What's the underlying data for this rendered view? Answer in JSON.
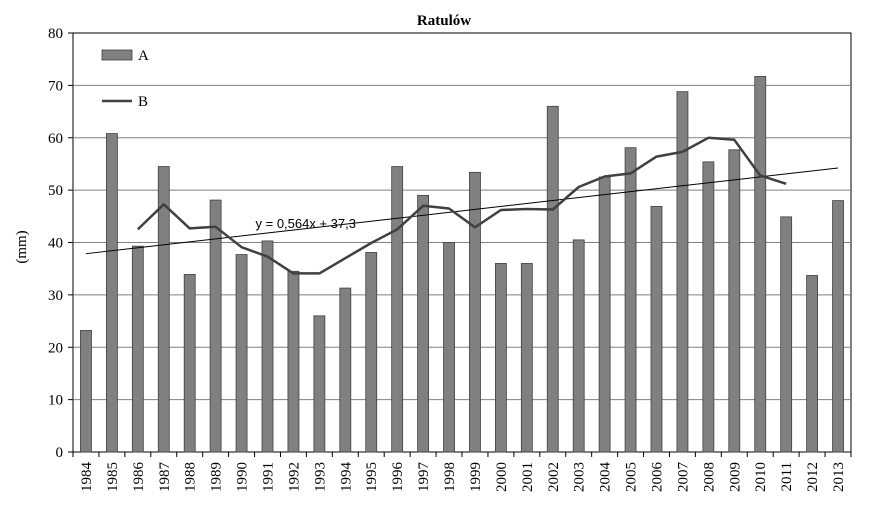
{
  "chart_data": {
    "type": "bar",
    "title": "Ratulów",
    "ylabel": "(mm)",
    "xlabel": "",
    "ylim": [
      0,
      80
    ],
    "yticks": [
      0,
      10,
      20,
      30,
      40,
      50,
      60,
      70,
      80
    ],
    "grid": "horizontal",
    "legend_position": "top-left",
    "categories": [
      "1984",
      "1985",
      "1986",
      "1987",
      "1988",
      "1989",
      "1990",
      "1991",
      "1992",
      "1993",
      "1994",
      "1995",
      "1996",
      "1997",
      "1998",
      "1999",
      "2000",
      "2001",
      "2002",
      "2003",
      "2004",
      "2005",
      "2006",
      "2007",
      "2008",
      "2009",
      "2010",
      "2011",
      "2012",
      "2013"
    ],
    "series": [
      {
        "name": "A",
        "kind": "bar",
        "color": "#808080",
        "values": [
          23.2,
          60.8,
          39.3,
          54.5,
          33.9,
          48.1,
          37.7,
          40.3,
          34.5,
          26.0,
          31.3,
          38.1,
          54.5,
          49.0,
          40.0,
          53.4,
          36.0,
          36.0,
          66.0,
          40.5,
          52.5,
          58.1,
          46.9,
          68.8,
          55.4,
          57.7,
          71.7,
          44.9,
          33.7,
          48.0
        ]
      },
      {
        "name": "B",
        "kind": "line",
        "color": "#404040",
        "values": [
          null,
          null,
          42.5,
          47.3,
          42.7,
          43.0,
          39.1,
          37.3,
          34.1,
          34.1,
          37.0,
          39.9,
          42.5,
          47.0,
          46.5,
          42.9,
          46.2,
          46.4,
          46.3,
          50.6,
          52.6,
          53.2,
          56.4,
          57.3,
          60.0,
          59.6,
          52.8,
          51.2,
          null,
          null
        ]
      },
      {
        "name": "trend",
        "kind": "trendline",
        "color": "#000000",
        "slope": 0.564,
        "intercept": 37.3
      }
    ],
    "annotations": [
      {
        "text": "y = 0,564x + 37,3",
        "category": "1991",
        "y": 43.5
      }
    ]
  }
}
